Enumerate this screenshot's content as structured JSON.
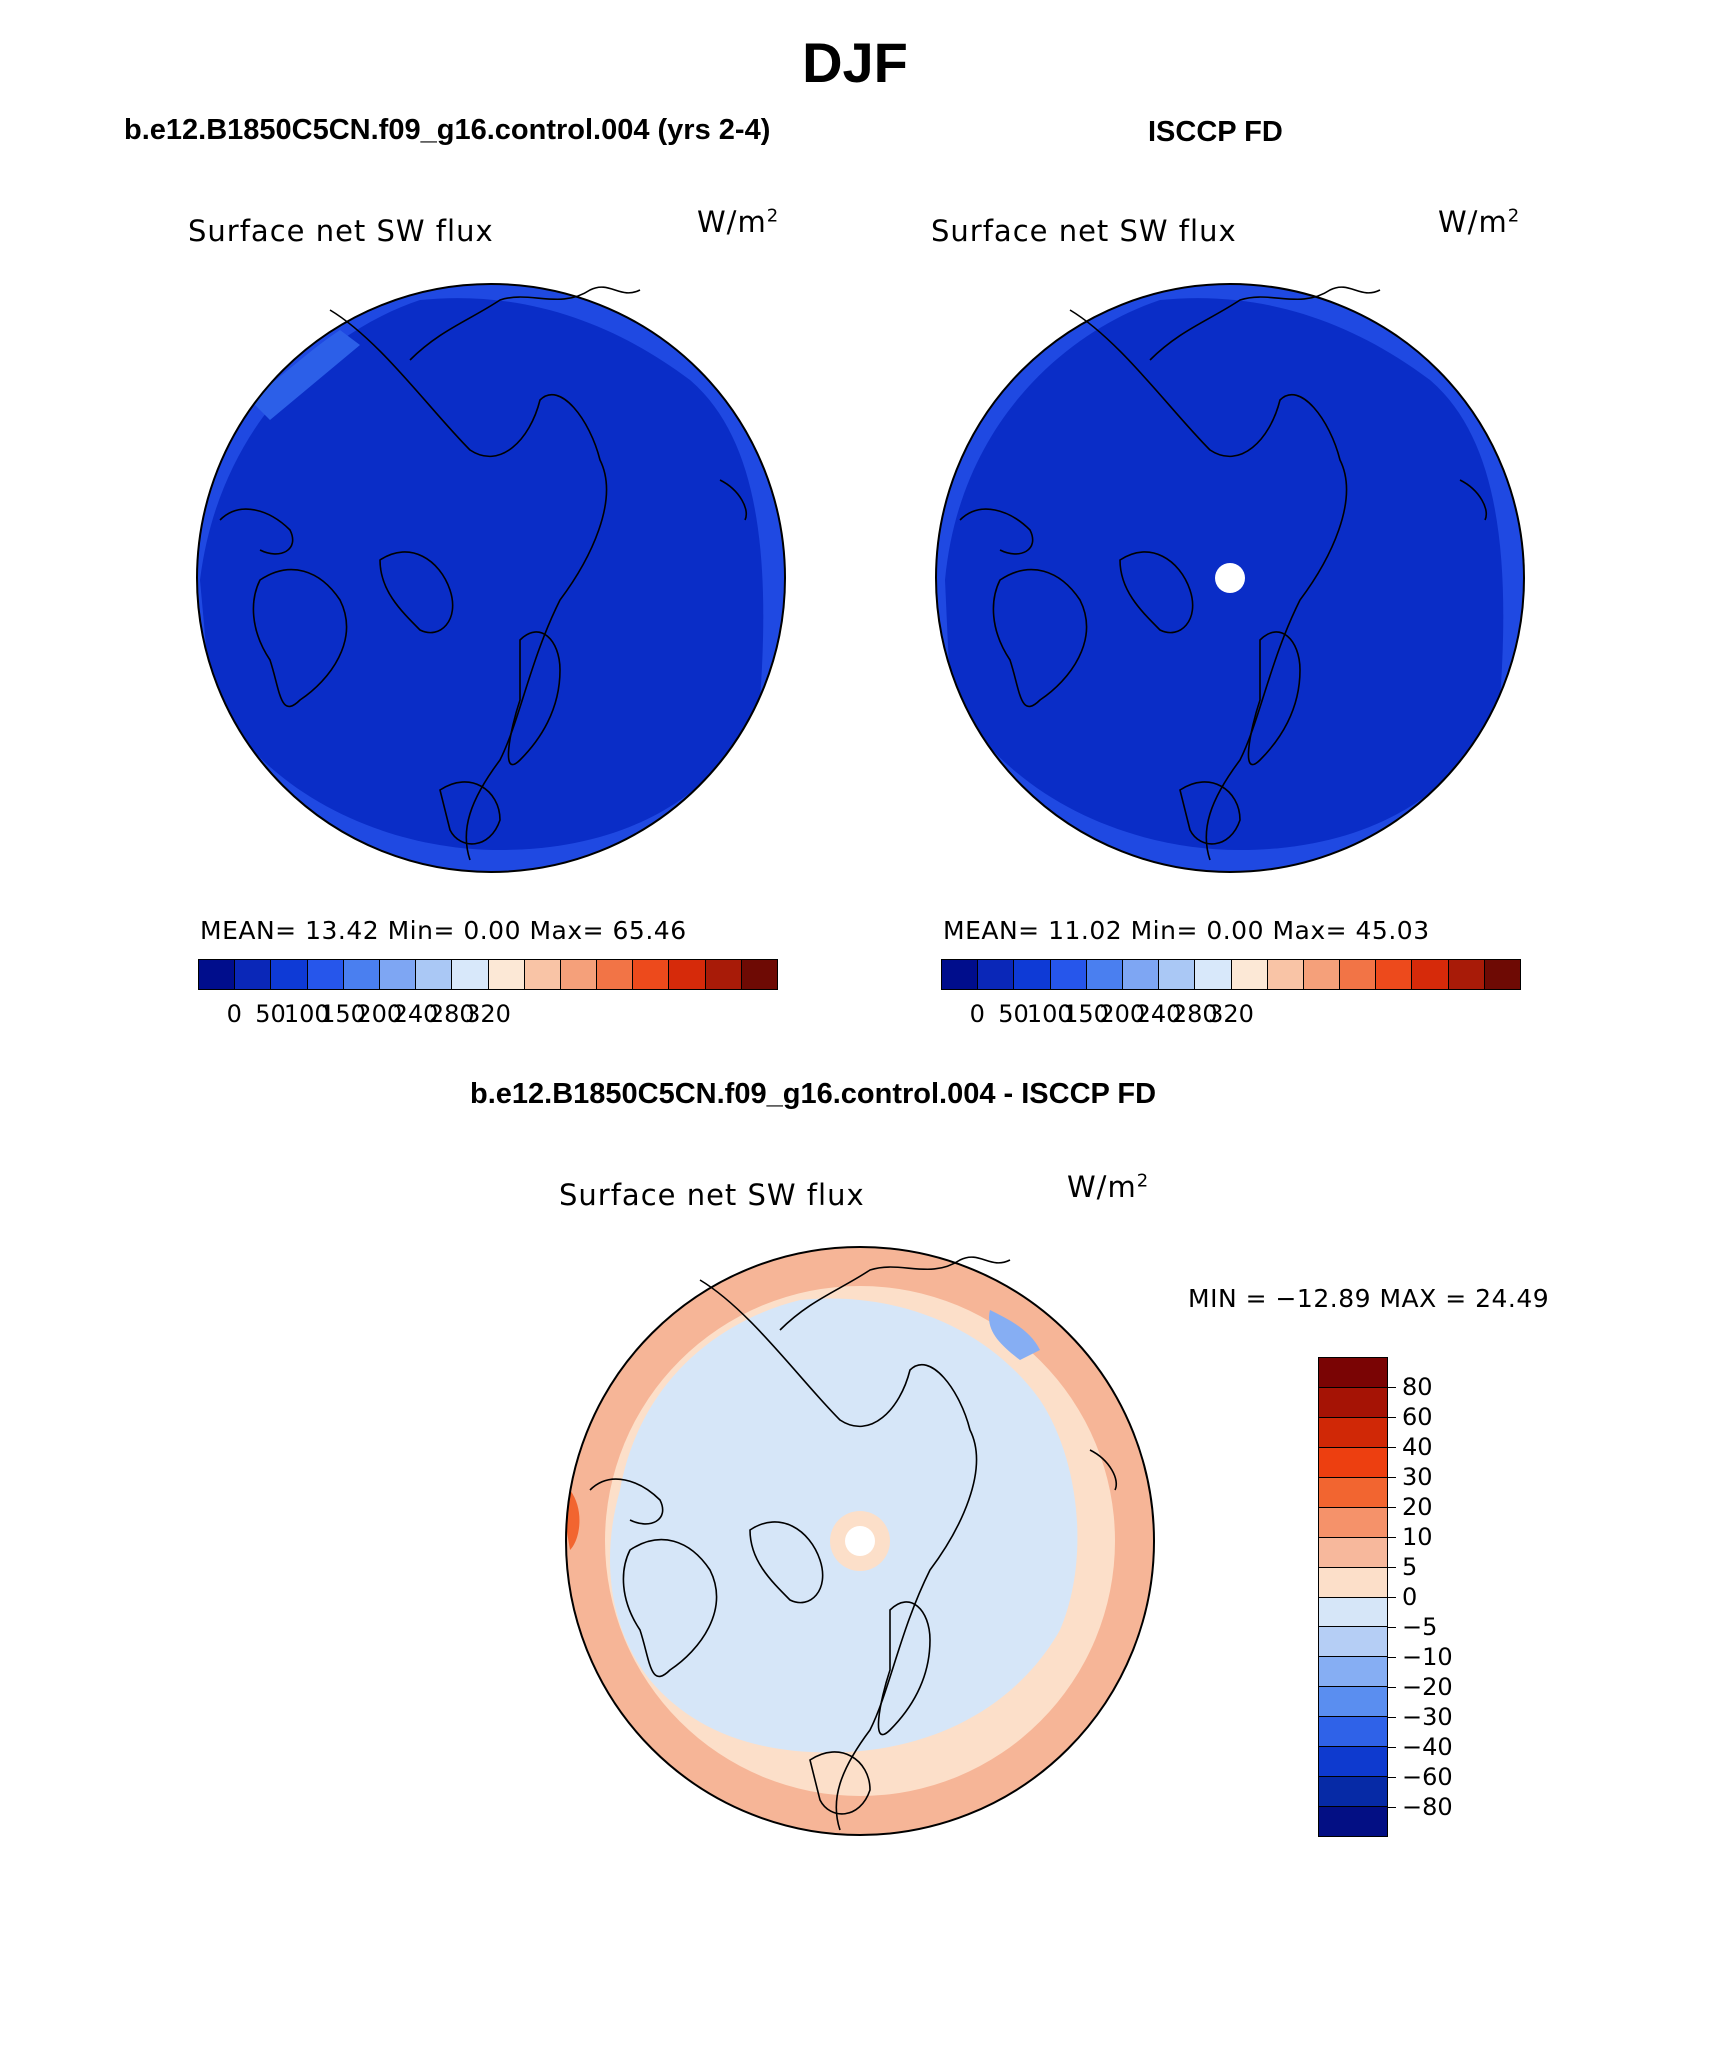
{
  "page": {
    "title": "DJF",
    "left_title": "b.e12.B1850C5CN.f09_g16.control.004 (yrs 2-4)",
    "right_title": "ISCCP FD",
    "bottom_title": "b.e12.B1850C5CN.f09_g16.control.004 - ISCCP FD"
  },
  "panels": {
    "left": {
      "variable": "Surface net SW flux",
      "units_base": "W/m",
      "units_exp": "2",
      "stats": "MEAN=   13.42   Min=     0.00   Max=   65.46"
    },
    "right": {
      "variable": "Surface net SW flux",
      "units_base": "W/m",
      "units_exp": "2",
      "stats": "MEAN=   11.02   Min=     0.00   Max=   45.03"
    },
    "diff": {
      "variable": "Surface net SW flux",
      "units_base": "W/m",
      "units_exp": "2",
      "stats": "MIN = −12.89  MAX =   24.49"
    }
  },
  "chart_data": [
    {
      "type": "heatmap",
      "title": "b.e12.B1850C5CN.f09_g16.control.004 (yrs 2-4)",
      "variable": "Surface net SW flux",
      "units": "W/m^2",
      "projection": "north polar stereographic",
      "mean": 13.42,
      "min": 0.0,
      "max": 65.46,
      "colorbar": {
        "orientation": "horizontal",
        "tick_labels": [
          "0",
          "50",
          "100",
          "150",
          "200",
          "240",
          "280",
          "320"
        ],
        "colors": [
          "#000d8c",
          "#0a27b8",
          "#0e3ad6",
          "#2656eb",
          "#4a7ff0",
          "#7ea6f3",
          "#aac8f5",
          "#d8e8fa",
          "#fce8d6",
          "#f9c4a6",
          "#f5a07a",
          "#f27446",
          "#ed4a1c",
          "#d62a0a",
          "#a81b08",
          "#6e0a04"
        ]
      },
      "dominant_values": "0-50 over most of the map, 50 near the southern rim"
    },
    {
      "type": "heatmap",
      "title": "ISCCP FD",
      "variable": "Surface net SW flux",
      "units": "W/m^2",
      "projection": "north polar stereographic",
      "mean": 11.02,
      "min": 0.0,
      "max": 45.03,
      "colorbar": {
        "orientation": "horizontal",
        "tick_labels": [
          "0",
          "50",
          "100",
          "150",
          "200",
          "240",
          "280",
          "320"
        ],
        "colors": [
          "#000d8c",
          "#0a27b8",
          "#0e3ad6",
          "#2656eb",
          "#4a7ff0",
          "#7ea6f3",
          "#aac8f5",
          "#d8e8fa",
          "#fce8d6",
          "#f9c4a6",
          "#f5a07a",
          "#f27446",
          "#ed4a1c",
          "#d62a0a",
          "#a81b08",
          "#6e0a04"
        ]
      },
      "missing": "pole (white dot)"
    },
    {
      "type": "heatmap",
      "title": "b.e12.B1850C5CN.f09_g16.control.004 - ISCCP FD",
      "variable": "Surface net SW flux",
      "units": "W/m^2",
      "projection": "north polar stereographic",
      "min": -12.89,
      "max": 24.49,
      "colorbar": {
        "orientation": "vertical",
        "tick_labels": [
          "80",
          "60",
          "40",
          "30",
          "20",
          "10",
          "5",
          "0",
          "−5",
          "−10",
          "−20",
          "−30",
          "−40",
          "−60",
          "−80"
        ],
        "colors": [
          "#7a0404",
          "#a51305",
          "#d02806",
          "#ed3f10",
          "#f26530",
          "#f5926a",
          "#f7b89c",
          "#fcdfc9",
          "#d6e6f8",
          "#b5cef5",
          "#86aef3",
          "#5a8ef0",
          "#2f62e8",
          "#0e3acf",
          "#062aa6",
          "#030f84"
        ]
      },
      "dominant_values": "0 to -5 over the central Arctic, 0 to 10 near the rim, up to ~20 in the outer ring"
    }
  ]
}
